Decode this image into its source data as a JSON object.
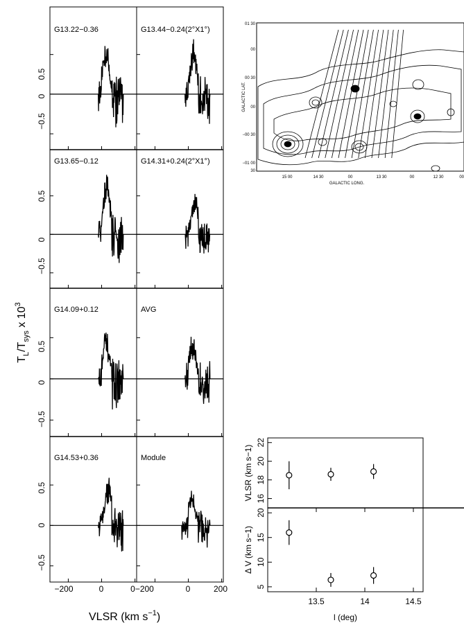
{
  "spectra": {
    "xlabel": "VLSR (km s",
    "xlabel_sup": "−1",
    "xlabel_close": ")",
    "ylabel_main": "T",
    "ylabel_sub1": "L",
    "ylabel_slash": "/T",
    "ylabel_sub2": "sys",
    "ylabel_tail": " x 10",
    "ylabel_sup": "3",
    "x_ticks": [
      "−200",
      "0",
      "200"
    ],
    "x_ticks_right_left": "0−200",
    "y_ticks": [
      "0.5",
      "0",
      "−0.5"
    ],
    "panels": [
      {
        "label": "G13.22−0.36"
      },
      {
        "label": "G13.44−0.24(2°X1°)"
      },
      {
        "label": "G13.65−0.12"
      },
      {
        "label": "G14.31+0.24(2°X1°)"
      },
      {
        "label": "G14.09+0.12"
      },
      {
        "label": "AVG"
      },
      {
        "label": "G14.53+0.36"
      },
      {
        "label": "Module"
      }
    ]
  },
  "map": {
    "ylabel": "GALACTIC LAT.",
    "xlabel": "GALACTIC LONG.",
    "y_ticks": [
      "01 30",
      "00",
      "00 30",
      "00",
      "−00 30",
      "−01 00",
      "30"
    ],
    "x_ticks": [
      "15 00",
      "14 30",
      "00",
      "13 30",
      "00",
      "12 30",
      "00"
    ]
  },
  "chart_data": [
    {
      "type": "line",
      "title": "",
      "xlabel": "VLSR (km s−1)",
      "ylabel": "TL/Tsys x 10^3",
      "xlim": [
        -310,
        210
      ],
      "ylim": [
        -0.7,
        1.1
      ],
      "panels": [
        {
          "label": "G13.22−0.36",
          "vmin": -20,
          "vmax": 130,
          "peak_v": 25,
          "peak": 0.67,
          "trough": -0.38
        },
        {
          "label": "G13.44−0.24(2°X1°)",
          "vmin": -20,
          "vmax": 130,
          "peak_v": 30,
          "peak": 0.64,
          "trough": -0.33
        },
        {
          "label": "G13.65−0.12",
          "vmin": -20,
          "vmax": 130,
          "peak_v": 30,
          "peak": 0.78,
          "trough": -0.38
        },
        {
          "label": "G14.31+0.24(2°X1°)",
          "vmin": -20,
          "vmax": 130,
          "peak_v": 40,
          "peak": 0.52,
          "trough": -0.25
        },
        {
          "label": "G14.09+0.12",
          "vmin": -20,
          "vmax": 130,
          "peak_v": 25,
          "peak": 0.55,
          "trough": -0.33
        },
        {
          "label": "AVG",
          "vmin": -20,
          "vmax": 130,
          "peak_v": 25,
          "peak": 0.52,
          "trough": -0.25
        },
        {
          "label": "G14.53+0.36",
          "vmin": -20,
          "vmax": 130,
          "peak_v": 40,
          "peak": 0.58,
          "trough": -0.28
        },
        {
          "label": "Module",
          "vmin": -40,
          "vmax": 130,
          "peak_v": 20,
          "peak": 0.41,
          "trough": -0.22
        }
      ]
    },
    {
      "type": "scatter",
      "title": "",
      "xlabel": "l (deg)",
      "xlim": [
        13.0,
        14.6
      ],
      "x_ticks": [
        13.5,
        14,
        14.5
      ],
      "panels": [
        {
          "ylabel": "VLSR (km s−1)",
          "ylim": [
            15,
            22.5
          ],
          "y_ticks": [
            16,
            18,
            20,
            22
          ],
          "points": [
            {
              "x": 13.22,
              "y": 18.5,
              "err": 1.5
            },
            {
              "x": 13.65,
              "y": 18.6,
              "err": 0.7
            },
            {
              "x": 14.09,
              "y": 18.9,
              "err": 0.8
            }
          ]
        },
        {
          "ylabel": "Δ V (km s−1)",
          "ylim": [
            4,
            21
          ],
          "y_ticks": [
            5,
            10,
            15,
            20
          ],
          "points": [
            {
              "x": 13.22,
              "y": 16,
              "err": 2.5
            },
            {
              "x": 13.65,
              "y": 6.4,
              "err": 1.4
            },
            {
              "x": 14.09,
              "y": 7.3,
              "err": 1.7
            }
          ]
        }
      ]
    }
  ]
}
